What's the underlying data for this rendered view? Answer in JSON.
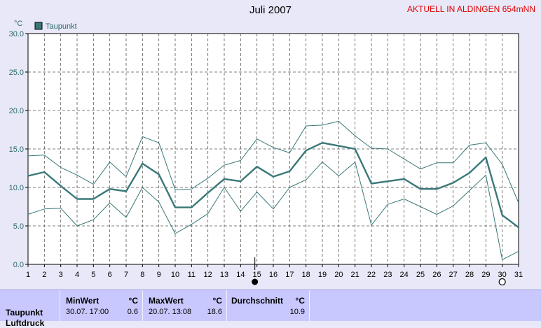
{
  "header": {
    "title": "Juli 2007",
    "badge": "AKTUELL IN ALDINGEN 654mNN"
  },
  "chart_data": {
    "type": "line",
    "title": "Juli 2007",
    "ylabel": "°C",
    "xlabel": "",
    "ylim": [
      0,
      30
    ],
    "yticks": [
      "0.0",
      "5.0",
      "10.0",
      "15.0",
      "20.0",
      "25.0",
      "30.0"
    ],
    "x": [
      1,
      2,
      3,
      4,
      5,
      6,
      7,
      8,
      9,
      10,
      11,
      12,
      13,
      14,
      15,
      16,
      17,
      18,
      19,
      20,
      21,
      22,
      23,
      24,
      25,
      26,
      27,
      28,
      29,
      30,
      31
    ],
    "grid": true,
    "legend": "top-left",
    "series": [
      {
        "name": "Taupunkt",
        "color": "#3a7878",
        "role": "mean",
        "values": [
          11.5,
          12.0,
          10.2,
          8.5,
          8.5,
          9.8,
          9.5,
          13.1,
          11.7,
          7.4,
          7.4,
          9.3,
          11.1,
          10.8,
          12.7,
          11.4,
          12.1,
          14.8,
          15.8,
          15.4,
          15.0,
          10.5,
          10.8,
          11.1,
          9.8,
          9.8,
          10.6,
          11.9,
          13.9,
          6.4,
          4.8
        ]
      },
      {
        "name": "",
        "color": "#3a7878",
        "role": "max",
        "values": [
          14.1,
          14.2,
          12.6,
          11.6,
          10.4,
          13.3,
          11.4,
          16.6,
          15.8,
          9.7,
          9.8,
          11.2,
          12.9,
          13.5,
          16.3,
          15.2,
          14.5,
          18.0,
          18.1,
          18.6,
          16.7,
          15.1,
          15.0,
          13.7,
          12.4,
          13.2,
          13.2,
          15.5,
          15.8,
          13.0,
          8.0
        ]
      },
      {
        "name": "",
        "color": "#3a7878",
        "role": "min",
        "values": [
          6.5,
          7.2,
          7.3,
          5.0,
          5.8,
          8.0,
          6.1,
          10.0,
          8.1,
          4.0,
          5.2,
          6.6,
          10.0,
          6.9,
          9.4,
          7.2,
          10.0,
          11.0,
          13.3,
          11.5,
          13.3,
          5.1,
          7.8,
          8.5,
          7.5,
          6.5,
          7.6,
          9.6,
          11.6,
          0.6,
          1.7
        ]
      }
    ],
    "markers": [
      {
        "x": 15,
        "shape": "filled-circle"
      },
      {
        "x": 30,
        "shape": "open-circle"
      }
    ]
  },
  "stats": {
    "row_label": "Taupunkt",
    "row_label2": "Luftdruck",
    "min_header": "MinWert",
    "min_unit": "°C",
    "min_when": "30.07.  17:00",
    "min_value": "0.6",
    "max_header": "MaxWert",
    "max_unit": "°C",
    "max_when": "20.07.  13:08",
    "max_value": "18.6",
    "avg_header": "Durchschnitt",
    "avg_unit": "°C",
    "avg_value": "10.9"
  }
}
